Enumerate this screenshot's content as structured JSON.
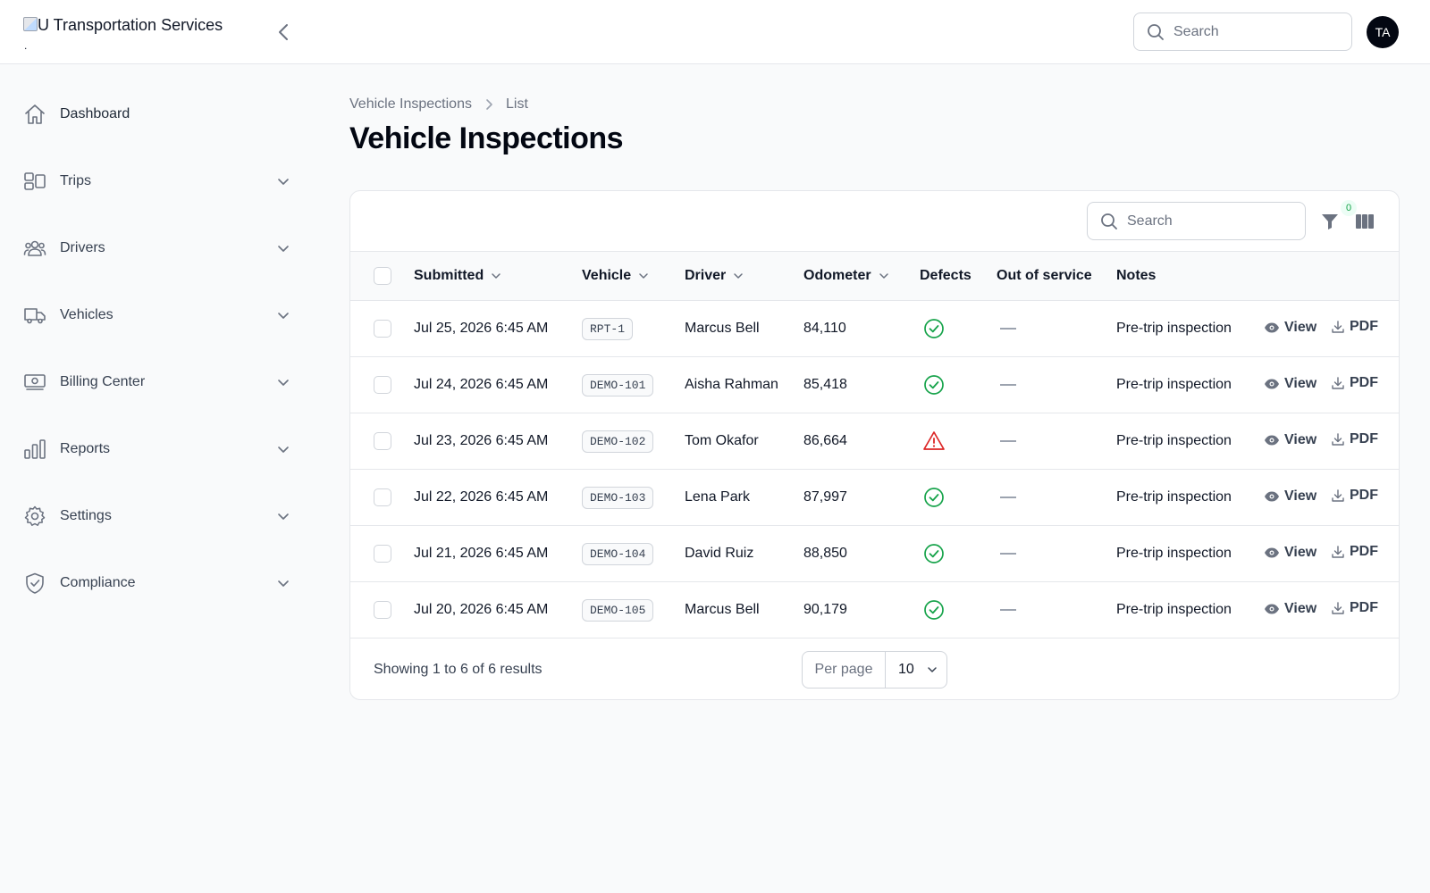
{
  "app": {
    "logo_alt": "U Transportation Services",
    "logo_dot": ".",
    "search_placeholder": "Search",
    "avatar_initials": "TA"
  },
  "sidebar": {
    "items": [
      {
        "label": "Dashboard",
        "icon": "home-icon"
      },
      {
        "label": "Trips",
        "icon": "trips-icon"
      },
      {
        "label": "Drivers",
        "icon": "users-icon"
      },
      {
        "label": "Vehicles",
        "icon": "truck-icon"
      },
      {
        "label": "Billing Center",
        "icon": "billing-icon"
      },
      {
        "label": "Reports",
        "icon": "bar-chart-icon"
      },
      {
        "label": "Settings",
        "icon": "gear-icon"
      },
      {
        "label": "Compliance",
        "icon": "shield-check-icon"
      }
    ]
  },
  "breadcrumb": {
    "parent": "Vehicle Inspections",
    "current": "List"
  },
  "page": {
    "title": "Vehicle Inspections"
  },
  "table": {
    "search_placeholder": "Search",
    "filter_count": "0",
    "columns": {
      "submitted": "Submitted",
      "vehicle": "Vehicle",
      "driver": "Driver",
      "odometer": "Odometer",
      "defects": "Defects",
      "out_of_service": "Out of service",
      "notes": "Notes"
    },
    "view_label": "View",
    "pdf_label": "PDF",
    "rows": [
      {
        "submitted": "Jul 25, 2026 6:45 AM",
        "vehicle": "RPT-1",
        "driver": "Marcus Bell",
        "odometer": "84,110",
        "defects": "ok",
        "notes": "Pre-trip inspection"
      },
      {
        "submitted": "Jul 24, 2026 6:45 AM",
        "vehicle": "DEMO-101",
        "driver": "Aisha Rahman",
        "odometer": "85,418",
        "defects": "ok",
        "notes": "Pre-trip inspection"
      },
      {
        "submitted": "Jul 23, 2026 6:45 AM",
        "vehicle": "DEMO-102",
        "driver": "Tom Okafor",
        "odometer": "86,664",
        "defects": "warning",
        "notes": "Pre-trip inspection"
      },
      {
        "submitted": "Jul 22, 2026 6:45 AM",
        "vehicle": "DEMO-103",
        "driver": "Lena Park",
        "odometer": "87,997",
        "defects": "ok",
        "notes": "Pre-trip inspection"
      },
      {
        "submitted": "Jul 21, 2026 6:45 AM",
        "vehicle": "DEMO-104",
        "driver": "David Ruiz",
        "odometer": "88,850",
        "defects": "ok",
        "notes": "Pre-trip inspection"
      },
      {
        "submitted": "Jul 20, 2026 6:45 AM",
        "vehicle": "DEMO-105",
        "driver": "Marcus Bell",
        "odometer": "90,179",
        "defects": "ok",
        "notes": "Pre-trip inspection"
      }
    ],
    "footer": {
      "results_text": "Showing 1 to 6 of 6 results",
      "per_page_label": "Per page",
      "per_page_value": "10"
    }
  },
  "colors": {
    "ok": "#16a34a",
    "warning": "#dc2626",
    "icon_gray": "#6b7280"
  }
}
